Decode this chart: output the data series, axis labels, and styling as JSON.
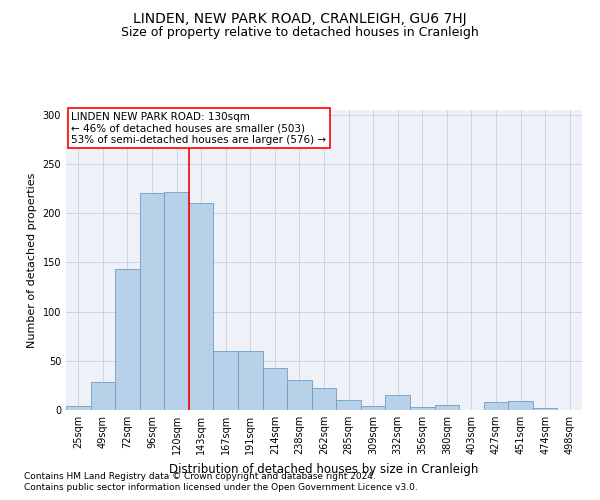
{
  "title": "LINDEN, NEW PARK ROAD, CRANLEIGH, GU6 7HJ",
  "subtitle": "Size of property relative to detached houses in Cranleigh",
  "xlabel": "Distribution of detached houses by size in Cranleigh",
  "ylabel": "Number of detached properties",
  "footnote1": "Contains HM Land Registry data © Crown copyright and database right 2024.",
  "footnote2": "Contains public sector information licensed under the Open Government Licence v3.0.",
  "bar_labels": [
    "25sqm",
    "49sqm",
    "72sqm",
    "96sqm",
    "120sqm",
    "143sqm",
    "167sqm",
    "191sqm",
    "214sqm",
    "238sqm",
    "262sqm",
    "285sqm",
    "309sqm",
    "332sqm",
    "356sqm",
    "380sqm",
    "403sqm",
    "427sqm",
    "451sqm",
    "474sqm",
    "498sqm"
  ],
  "bar_values": [
    4,
    28,
    143,
    221,
    222,
    210,
    60,
    60,
    43,
    30,
    22,
    10,
    4,
    15,
    3,
    5,
    0,
    8,
    9,
    2,
    0
  ],
  "bar_color": "#b8d0e8",
  "bar_edge_color": "#6a9ec8",
  "grid_color": "#c8d4e4",
  "annotation_text": "LINDEN NEW PARK ROAD: 130sqm\n← 46% of detached houses are smaller (503)\n53% of semi-detached houses are larger (576) →",
  "annotation_box_edge_color": "red",
  "vline_color": "red",
  "vline_x_index": 4,
  "ylim": [
    0,
    305
  ],
  "yticks": [
    0,
    50,
    100,
    150,
    200,
    250,
    300
  ],
  "bg_color": "#eef2f8",
  "title_fontsize": 10,
  "subtitle_fontsize": 9,
  "annotation_fontsize": 7.5,
  "xlabel_fontsize": 8.5,
  "ylabel_fontsize": 8,
  "tick_fontsize": 7,
  "footnote_fontsize": 6.5
}
